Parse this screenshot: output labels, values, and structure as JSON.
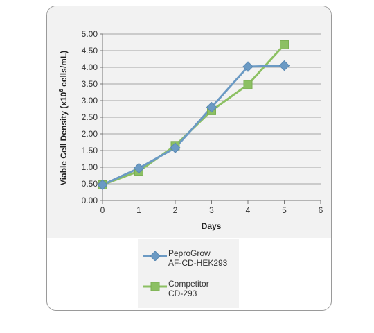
{
  "chart_data": {
    "type": "line",
    "xlabel": "Days",
    "ylabel_main": "Viable Cell Density (x10",
    "ylabel_sup": "6",
    "ylabel_tail": " cells/mL)",
    "xlim": [
      0,
      6
    ],
    "ylim": [
      0,
      5
    ],
    "x_ticks": [
      0,
      1,
      2,
      3,
      4,
      5,
      6
    ],
    "y_ticks": [
      "0.00",
      "0.50",
      "1.00",
      "1.50",
      "2.00",
      "2.50",
      "3.00",
      "3.50",
      "4.00",
      "4.50",
      "5.00"
    ],
    "grid": true,
    "legend_position": "bottom",
    "series": [
      {
        "name_line1": "PeproGrow",
        "name_line2": "AF-CD-HEK293",
        "color": "#6b9ac4",
        "marker": "diamond",
        "x": [
          0,
          1,
          2,
          3,
          4,
          5
        ],
        "y": [
          0.47,
          0.97,
          1.58,
          2.8,
          4.02,
          4.05
        ]
      },
      {
        "name_line1": "Competitor",
        "name_line2": "CD-293",
        "color": "#8cc063",
        "marker": "square",
        "x": [
          0,
          1,
          2,
          3,
          4,
          5
        ],
        "y": [
          0.47,
          0.88,
          1.65,
          2.7,
          3.48,
          4.68
        ]
      }
    ]
  }
}
